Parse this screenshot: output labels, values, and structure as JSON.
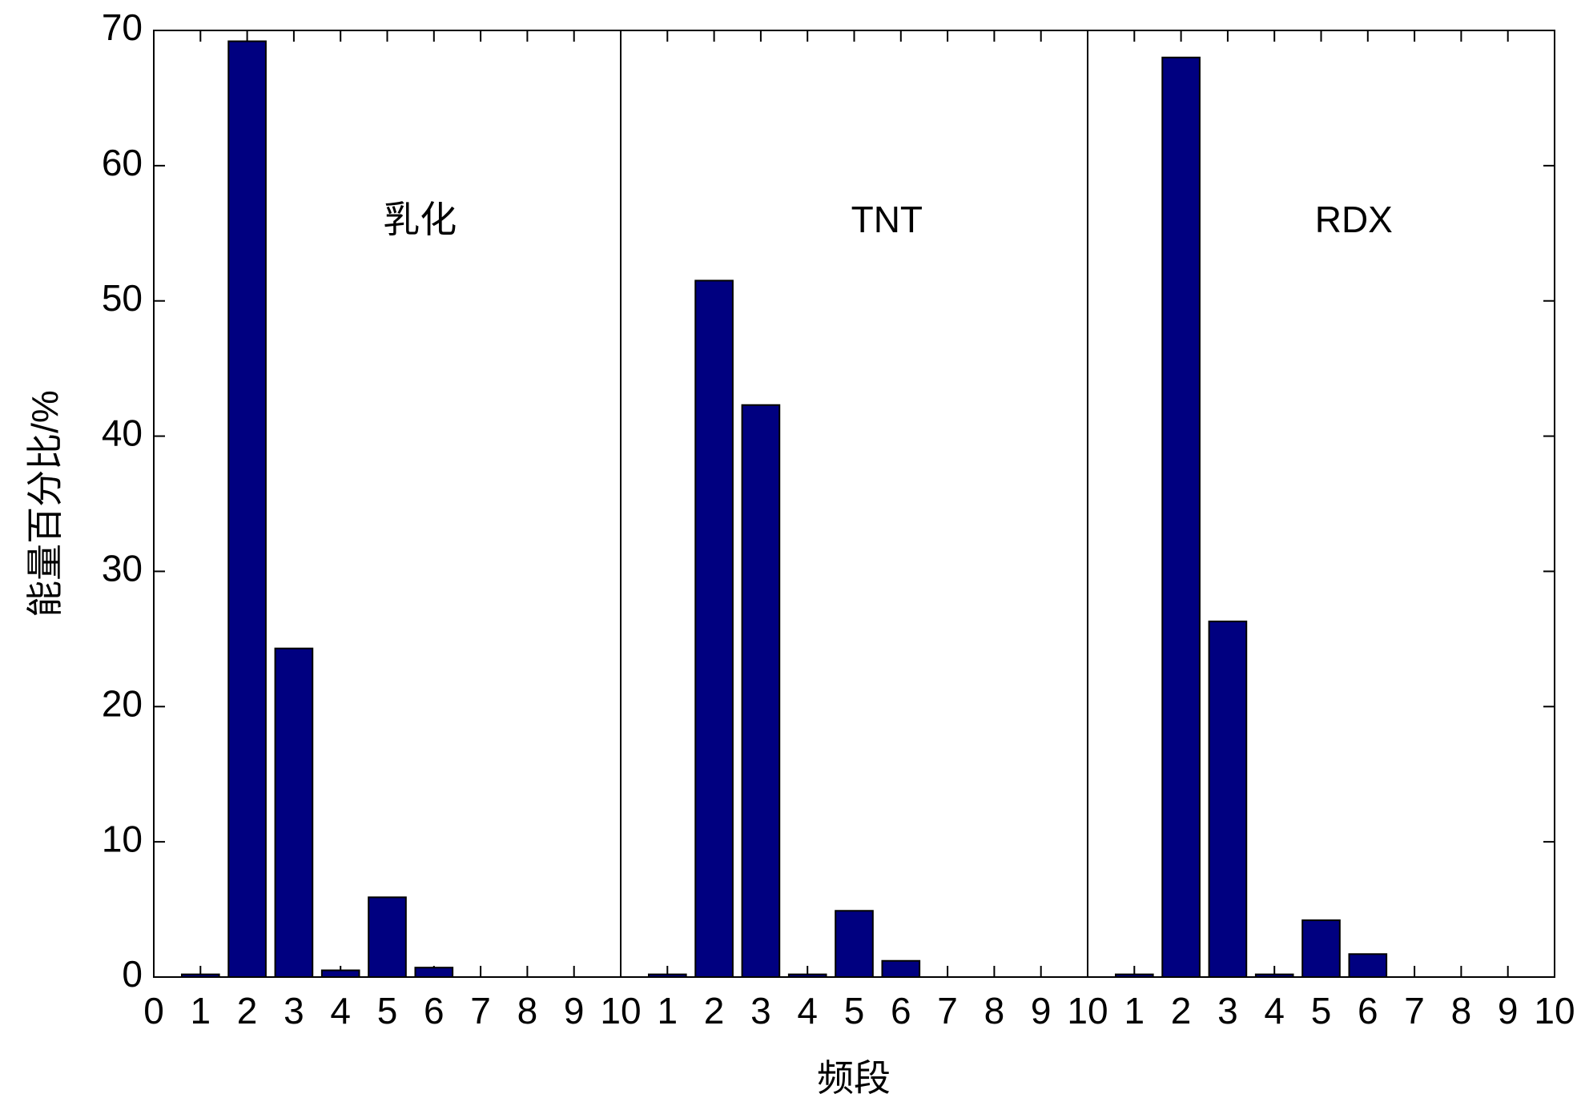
{
  "chart_data": [
    {
      "type": "bar",
      "annotation": "乳化",
      "ylabel": "能量百分比/%",
      "x": [
        1,
        2,
        3,
        4,
        5,
        6,
        7,
        8,
        9,
        10
      ],
      "values": [
        0.2,
        69.2,
        24.3,
        0.5,
        5.9,
        0.7,
        0,
        0,
        0,
        0
      ],
      "color": "#000080",
      "xlim": [
        0,
        10
      ],
      "xticks": [
        0,
        1,
        2,
        3,
        4,
        5,
        6,
        7,
        8,
        9,
        10
      ],
      "ylim": [
        0,
        70
      ],
      "yticks": [
        0,
        10,
        20,
        30,
        40,
        50,
        60,
        70
      ]
    },
    {
      "type": "bar",
      "annotation": "TNT",
      "xlabel": "频段",
      "x": [
        1,
        2,
        3,
        4,
        5,
        6,
        7,
        8,
        9,
        10
      ],
      "values": [
        0.2,
        51.5,
        42.3,
        0.2,
        4.9,
        1.2,
        0,
        0,
        0,
        0
      ],
      "color": "#000080",
      "xlim": [
        0,
        10
      ],
      "xticks": [
        1,
        2,
        3,
        4,
        5,
        6,
        7,
        8,
        9,
        10
      ],
      "ylim": [
        0,
        70
      ]
    },
    {
      "type": "bar",
      "annotation": "RDX",
      "x": [
        1,
        2,
        3,
        4,
        5,
        6,
        7,
        8,
        9,
        10
      ],
      "values": [
        0.2,
        68.0,
        26.3,
        0.2,
        4.2,
        1.7,
        0,
        0,
        0,
        0
      ],
      "color": "#000080",
      "xlim": [
        0,
        10
      ],
      "xticks": [
        1,
        2,
        3,
        4,
        5,
        6,
        7,
        8,
        9,
        10
      ],
      "ylim": [
        0,
        70
      ]
    }
  ]
}
